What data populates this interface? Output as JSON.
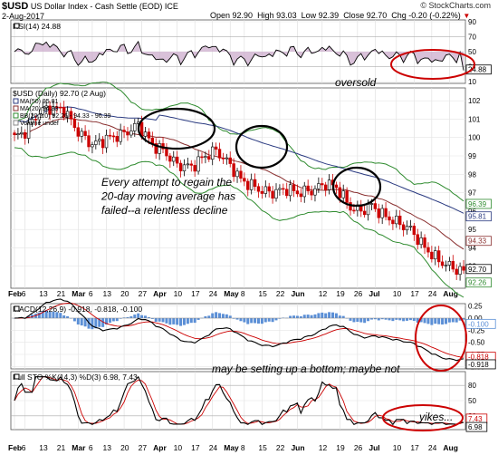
{
  "header": {
    "symbol": "$USD",
    "name": "US Dollar Index - Cash Settle (EOD)",
    "exchange": "ICE",
    "date": "2-Aug-2017",
    "watermark": "© StockCharts.com",
    "open": "Open 92.90",
    "high": "High 93.03",
    "low": "Low 92.39",
    "close": "Close 92.70",
    "chg": "Chg -0.20 (-0.22%)",
    "chg_icon": "down-triangle-icon"
  },
  "rsi": {
    "label": "RSI(14) 24.88",
    "value": 24.88,
    "levels": [
      "90",
      "70",
      "50",
      "30",
      "10"
    ],
    "annotation": "oversold"
  },
  "price": {
    "legend": [
      "$USD (Daily) 92.70 (2 Aug)",
      "MA(50) 95.81",
      "MA(20) 94.33",
      "BB(20,2.0) 92.26 - 94.33 - 96.39",
      "Volume undef"
    ],
    "y_ticks": [
      "102",
      "101",
      "100",
      "99",
      "98",
      "97",
      "96",
      "95",
      "94",
      "93"
    ],
    "value_tags": [
      "96.39",
      "95.81",
      "94.33",
      "92.70",
      "92.26"
    ],
    "annotation_lines": [
      "Every attempt to regain the",
      "20-day moving average has",
      "failed--a relentless decline"
    ]
  },
  "x_axis": {
    "labels": [
      "Feb",
      "6",
      "13",
      "21",
      "Mar",
      "6",
      "13",
      "20",
      "27",
      "Apr",
      "10",
      "17",
      "24",
      "May",
      "8",
      "15",
      "22",
      "Jun",
      "12",
      "19",
      "26",
      "Jul",
      "10",
      "17",
      "24",
      "Aug"
    ]
  },
  "macd": {
    "label": "MACD(12,26,9) -0.918, -0.818, -0.100",
    "y_ticks": [
      "0.25",
      "0.00",
      "-0.25",
      "-0.50",
      "-0.75",
      "-1.00"
    ],
    "value_tags": [
      "-0.100",
      "-0.818",
      "-0.918"
    ],
    "annotation": "may be setting up a bottom; maybe not"
  },
  "sto": {
    "label": "Full STO %K(14,3) %D(3) 6.98, 7.43",
    "y_ticks": [
      "80",
      "50",
      "20"
    ],
    "value_tags": [
      "7.43",
      "6.98"
    ],
    "annotation": "yikes..."
  },
  "chart_data": {
    "type": "line",
    "title": "$USD US Dollar Index - Cash Settle (EOD) ICE",
    "x": [
      "Feb",
      "Mar",
      "Apr",
      "May",
      "Jun",
      "Jul",
      "Aug"
    ],
    "series": [
      {
        "name": "$USD (Daily)",
        "values": [
          100.2,
          101.2,
          100.4,
          98.8,
          97.0,
          95.7,
          92.7
        ]
      },
      {
        "name": "MA(50)",
        "values": [
          101.0,
          100.9,
          100.5,
          99.6,
          98.4,
          97.0,
          95.81
        ]
      },
      {
        "name": "MA(20)",
        "values": [
          100.5,
          100.8,
          100.2,
          99.0,
          97.3,
          96.0,
          94.33
        ]
      }
    ],
    "ylim": [
      92,
      102.5
    ],
    "colors": {
      "price_up": "#000000",
      "price_down": "#cc0000",
      "ma50": "#2a3a80",
      "ma20": "#8a3030",
      "bb": "#2e8b2e",
      "macd": "#000000",
      "signal": "#cc0000",
      "hist": "#5b8fd6",
      "sto_k": "#000000",
      "sto_d": "#cc0000",
      "circle": "#cc0000"
    }
  }
}
